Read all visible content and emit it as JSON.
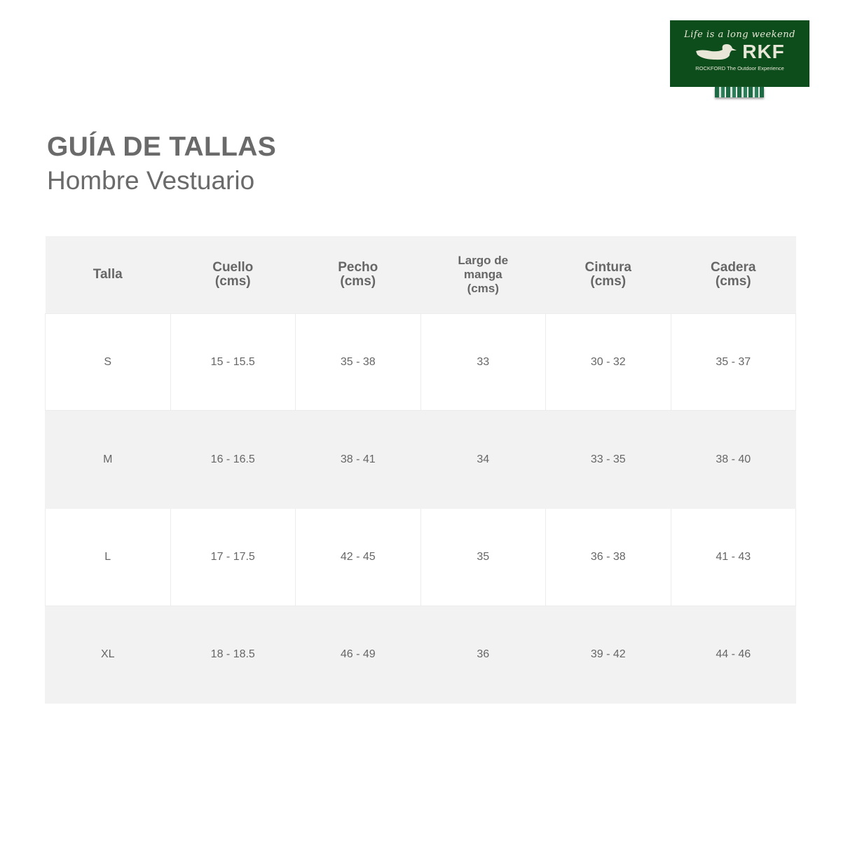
{
  "logo": {
    "tagline": "Life is a long weekend",
    "brand": "RKF",
    "subtitle": "ROCKFORD The Outdoor Experience",
    "color": "#0d4d1c"
  },
  "title": "GUÍA DE TALLAS",
  "subtitle": "Hombre Vestuario",
  "table": {
    "headers": [
      [
        "Talla"
      ],
      [
        "Cuello",
        "(cms)"
      ],
      [
        "Pecho",
        "(cms)"
      ],
      [
        "Largo de",
        "manga",
        "(cms)"
      ],
      [
        "Cintura",
        "(cms)"
      ],
      [
        "Cadera",
        "(cms)"
      ]
    ],
    "rows": [
      [
        "S",
        "15 - 15.5",
        "35 - 38",
        "33",
        "30 - 32",
        "35 - 37"
      ],
      [
        "M",
        "16 - 16.5",
        "38 - 41",
        "34",
        "33 - 35",
        "38 - 40"
      ],
      [
        "L",
        "17 - 17.5",
        "42 - 45",
        "35",
        "36 - 38",
        "41 - 43"
      ],
      [
        "XL",
        "18 - 18.5",
        "46 - 49",
        "36",
        "39 - 42",
        "44 - 46"
      ]
    ]
  }
}
